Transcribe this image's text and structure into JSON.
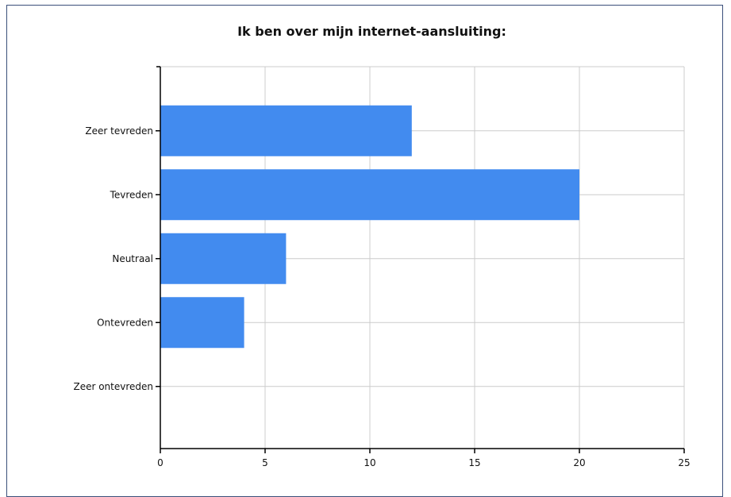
{
  "chart_data": {
    "type": "bar",
    "orientation": "horizontal",
    "title": "Ik ben over mijn internet-aansluiting:",
    "xlabel": "",
    "ylabel": "",
    "categories": [
      "Zeer tevreden",
      "Tevreden",
      "Neutraal",
      "Ontevreden",
      "Zeer ontevreden"
    ],
    "values": [
      12,
      20,
      6,
      4,
      0
    ],
    "xlim": [
      0,
      25
    ],
    "xticks": [
      0,
      5,
      10,
      15,
      20,
      25
    ],
    "grid": true,
    "legend": "none",
    "bar_color": "#428bef"
  }
}
